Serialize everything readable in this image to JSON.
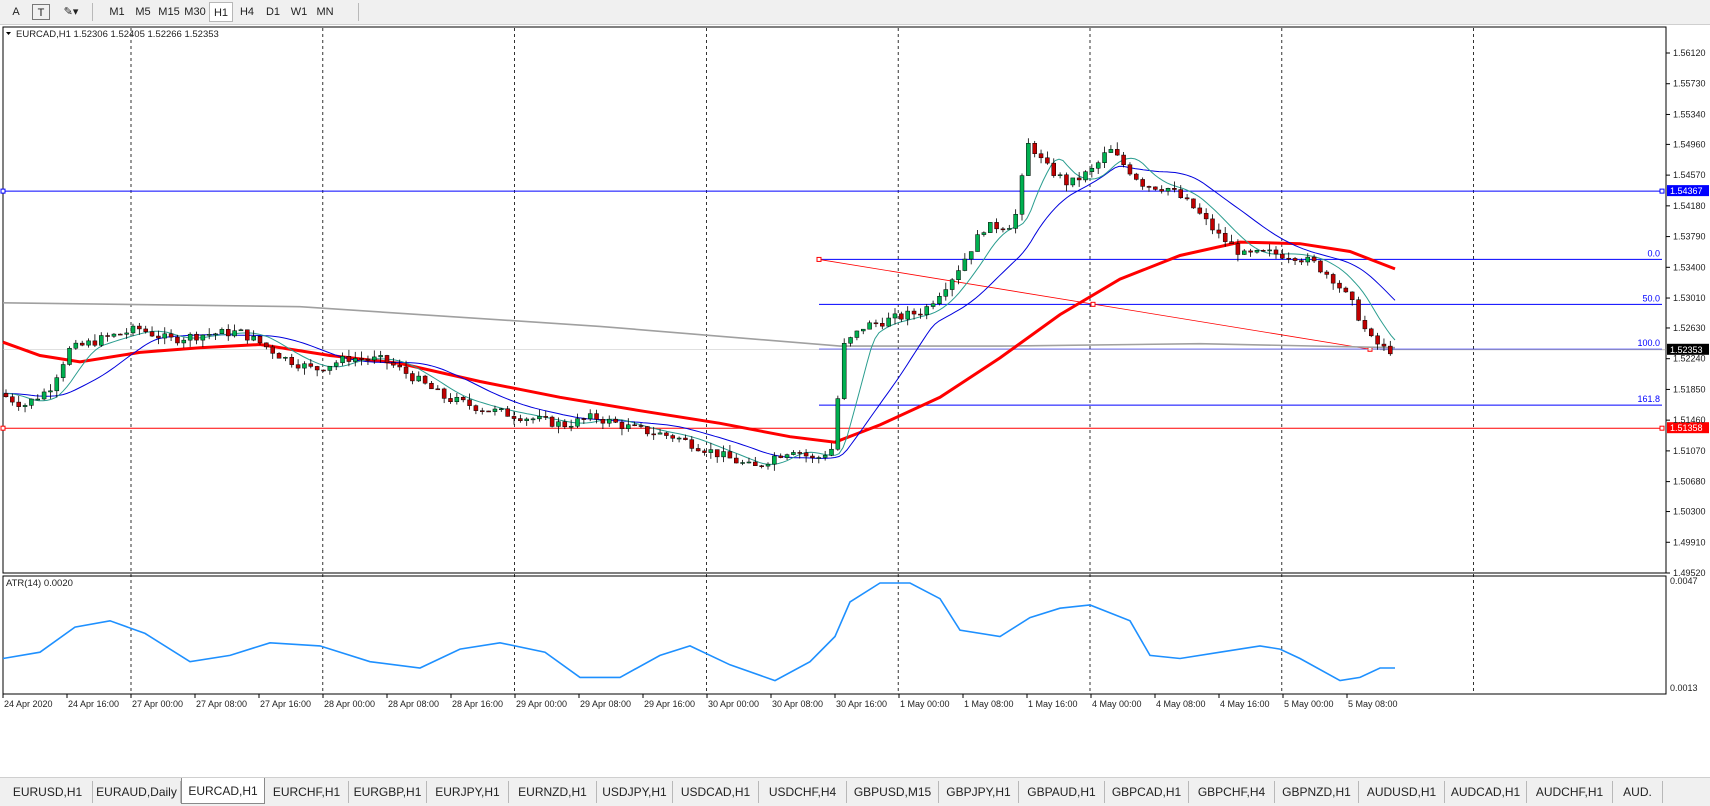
{
  "toolbar": {
    "items": [
      "A",
      "T",
      "✎▾"
    ],
    "timeframes": [
      {
        "label": "M1",
        "active": false
      },
      {
        "label": "M5",
        "active": false
      },
      {
        "label": "M15",
        "active": false
      },
      {
        "label": "M30",
        "active": false
      },
      {
        "label": "H1",
        "active": true
      },
      {
        "label": "H4",
        "active": false
      },
      {
        "label": "D1",
        "active": false
      },
      {
        "label": "W1",
        "active": false
      },
      {
        "label": "MN",
        "active": false
      }
    ]
  },
  "chart": {
    "header": "EURCAD,H1  1.52306 1.52405 1.52266 1.52353",
    "price_axis": [
      "1.56120",
      "1.55730",
      "1.55340",
      "1.54960",
      "1.54570",
      "1.54180",
      "1.53790",
      "1.53400",
      "1.53010",
      "1.52630",
      "1.52240",
      "1.51850",
      "1.51460",
      "1.51070",
      "1.50680",
      "1.50300",
      "1.49910",
      "1.49520"
    ],
    "price_range": [
      1.4952,
      1.5645
    ],
    "hlines": [
      {
        "price": 1.54367,
        "label": "1.54367",
        "color": "#0000ff"
      },
      {
        "price": 1.51358,
        "label": "1.51358",
        "color": "#ff0000"
      }
    ],
    "current_price": "1.52353",
    "fib_levels": [
      {
        "label": "0.0",
        "price": 1.535
      },
      {
        "label": "50.0",
        "price": 1.5293
      },
      {
        "label": "100.0",
        "price": 1.5236
      },
      {
        "label": "161.8",
        "price": 1.5165
      }
    ],
    "time_labels": [
      "24 Apr 2020",
      "24 Apr 16:00",
      "27 Apr 00:00",
      "27 Apr 08:00",
      "27 Apr 16:00",
      "28 Apr 00:00",
      "28 Apr 08:00",
      "28 Apr 16:00",
      "29 Apr 00:00",
      "29 Apr 08:00",
      "29 Apr 16:00",
      "30 Apr 00:00",
      "30 Apr 08:00",
      "30 Apr 16:00",
      "1 May 00:00",
      "1 May 08:00",
      "1 May 16:00",
      "4 May 00:00",
      "4 May 08:00",
      "4 May 16:00",
      "5 May 00:00",
      "5 May 08:00"
    ]
  },
  "atr": {
    "title": "ATR(14) 0.0020",
    "axis": [
      "0.0047",
      "0.0013"
    ]
  },
  "tabs": [
    {
      "label": "EURUSD,H1",
      "active": false
    },
    {
      "label": "EURAUD,Daily",
      "active": false
    },
    {
      "label": "EURCAD,H1",
      "active": true
    },
    {
      "label": "EURCHF,H1",
      "active": false
    },
    {
      "label": "EURGBP,H1",
      "active": false
    },
    {
      "label": "EURJPY,H1",
      "active": false
    },
    {
      "label": "EURNZD,H1",
      "active": false
    },
    {
      "label": "USDJPY,H1",
      "active": false
    },
    {
      "label": "USDCAD,H1",
      "active": false
    },
    {
      "label": "USDCHF,H4",
      "active": false
    },
    {
      "label": "GBPUSD,M15",
      "active": false
    },
    {
      "label": "GBPJPY,H1",
      "active": false
    },
    {
      "label": "GBPAUD,H1",
      "active": false
    },
    {
      "label": "GBPCAD,H1",
      "active": false
    },
    {
      "label": "GBPCHF,H4",
      "active": false
    },
    {
      "label": "GBPNZD,H1",
      "active": false
    },
    {
      "label": "AUDUSD,H1",
      "active": false
    },
    {
      "label": "AUDCAD,H1",
      "active": false
    },
    {
      "label": "AUDCHF,H1",
      "active": false
    },
    {
      "label": "AUD.",
      "active": false
    }
  ]
}
